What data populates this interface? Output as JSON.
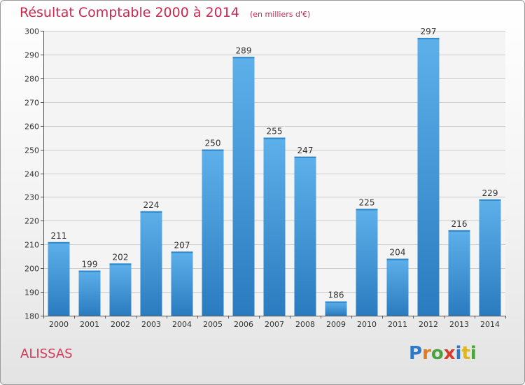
{
  "title": "Résultat Comptable 2000 à 2014",
  "subtitle": "(en milliers d'€)",
  "commune": "ALISSAS",
  "logo_text": "Proxiti",
  "colors": {
    "bar_light": "#5aaee8",
    "bar_dark": "#2a7cc0",
    "title": "#c8284e",
    "grid": "#cccccc"
  },
  "chart_data": {
    "type": "bar",
    "title": "Résultat Comptable 2000 à 2014",
    "subtitle": "(en milliers d'€)",
    "xlabel": "",
    "ylabel": "",
    "categories": [
      "2000",
      "2001",
      "2002",
      "2003",
      "2004",
      "2005",
      "2006",
      "2007",
      "2008",
      "2009",
      "2010",
      "2011",
      "2012",
      "2013",
      "2014"
    ],
    "values": [
      211,
      199,
      202,
      224,
      207,
      250,
      289,
      255,
      247,
      186,
      225,
      204,
      297,
      216,
      229
    ],
    "ylim": [
      180,
      300
    ],
    "yticks": [
      180,
      190,
      200,
      210,
      220,
      230,
      240,
      250,
      260,
      270,
      280,
      290,
      300
    ],
    "grid": true,
    "data_labels": true
  }
}
